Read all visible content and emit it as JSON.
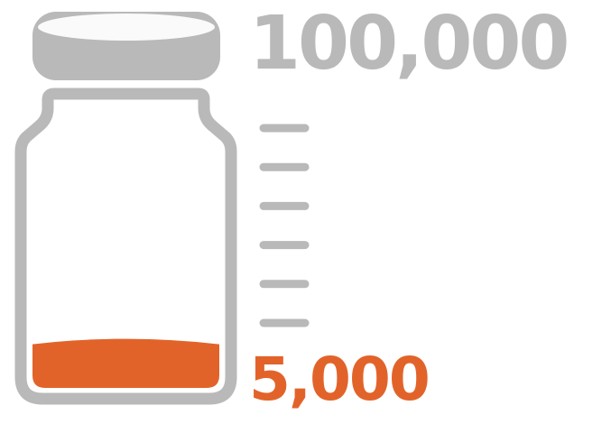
{
  "scale": {
    "max_label": "100,000",
    "fill_label": "5,000",
    "max_value": 100000,
    "fill_value": 5000,
    "fill_fraction": 0.05,
    "tick_count": 6
  },
  "colors": {
    "jar_outline": "#b9b9b9",
    "fill": "#e2632a",
    "max_text": "#b9b9b9",
    "background": "#ffffff"
  },
  "icons": {
    "jar": "jar-icon",
    "lid": "jar-lid-icon"
  }
}
